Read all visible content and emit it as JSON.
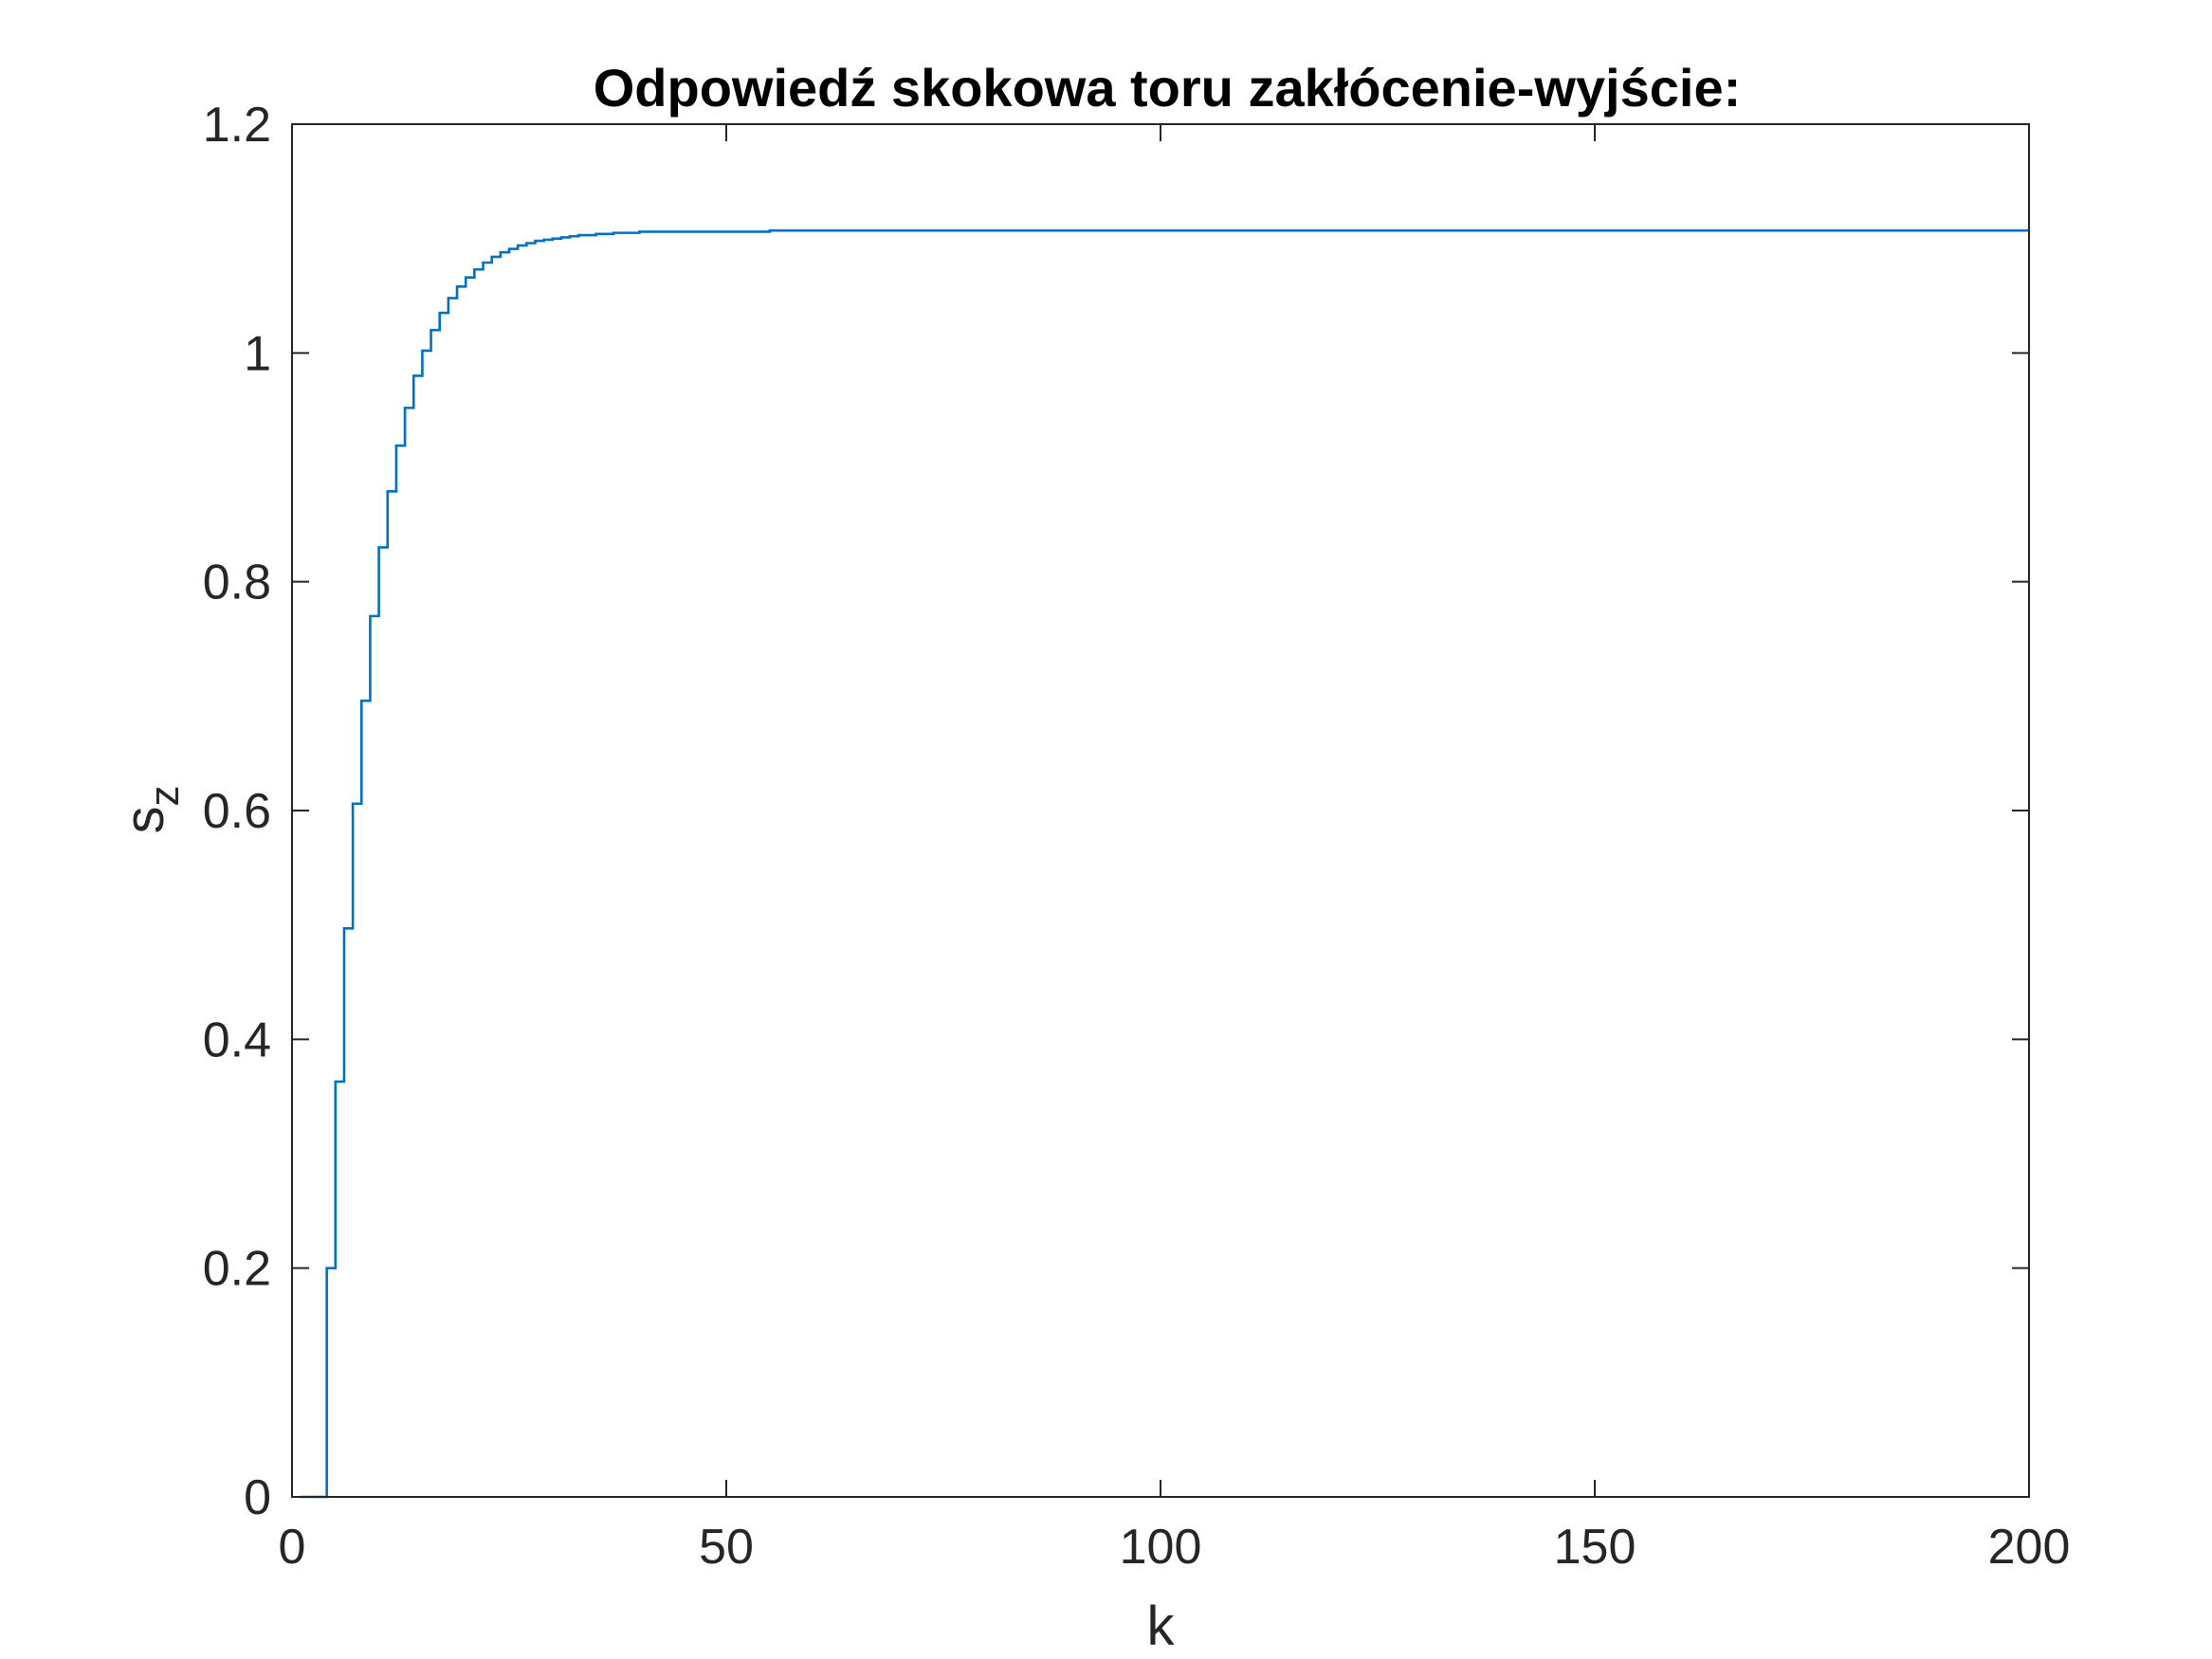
{
  "chart_data": {
    "type": "line",
    "step": true,
    "title": "Odpowiedź skokowa toru zakłócenie-wyjście:",
    "xlabel": "k",
    "ylabel": {
      "main": "s",
      "sub": "z"
    },
    "xlim": [
      0,
      200
    ],
    "ylim": [
      0,
      1.2
    ],
    "xticks": [
      0,
      50,
      100,
      150,
      200
    ],
    "xtick_labels": [
      "0",
      "50",
      "100",
      "150",
      "200"
    ],
    "yticks": [
      0,
      0.2,
      0.4,
      0.6,
      0.8,
      1,
      1.2
    ],
    "ytick_labels": [
      "0",
      "0.2",
      "0.4",
      "0.6",
      "0.8",
      "1",
      "1.2"
    ],
    "grid": false,
    "box": true,
    "series": [
      {
        "color": "#0072BD",
        "x": [
          1,
          2,
          3,
          4,
          5,
          6,
          7,
          8,
          9,
          10,
          11,
          12,
          13,
          14,
          15,
          16,
          17,
          18,
          19,
          20,
          21,
          22,
          23,
          24,
          25,
          26,
          27,
          28,
          29,
          30,
          31,
          32,
          33,
          34,
          35,
          36,
          37,
          38,
          39,
          40,
          45,
          50,
          55,
          60,
          80,
          100,
          150,
          200
        ],
        "y": [
          0,
          0,
          0,
          0.2,
          0.363,
          0.497,
          0.606,
          0.696,
          0.77,
          0.83,
          0.879,
          0.919,
          0.952,
          0.98,
          1.002,
          1.02,
          1.035,
          1.048,
          1.058,
          1.066,
          1.073,
          1.079,
          1.084,
          1.088,
          1.091,
          1.094,
          1.096,
          1.098,
          1.099,
          1.1,
          1.101,
          1.102,
          1.103,
          1.103,
          1.104,
          1.104,
          1.105,
          1.105,
          1.105,
          1.106,
          1.106,
          1.106,
          1.107,
          1.107,
          1.107,
          1.107,
          1.107,
          1.107
        ]
      }
    ]
  },
  "colors": {
    "axes": "#262626",
    "line": "#0072BD",
    "background": "#ffffff"
  }
}
